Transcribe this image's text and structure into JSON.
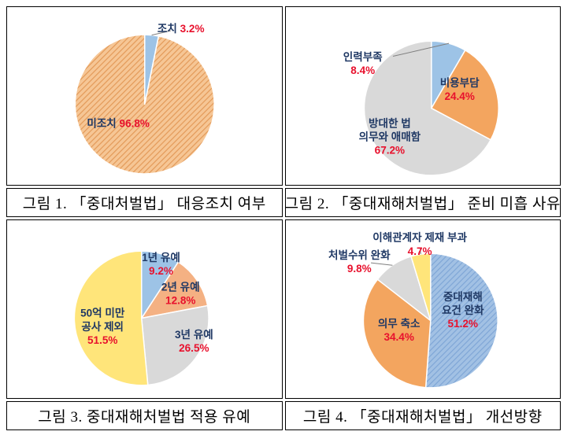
{
  "colors": {
    "label": "#1f3864",
    "pct": "#e8112d",
    "caption": "#000000",
    "border": "#000000",
    "leader": "#7f7f7f",
    "slice_stroke": "#ffffff"
  },
  "chart_data": [
    {
      "type": "pie",
      "title": "그림 1. 「중대처벌법」 대응조치 여부",
      "legend": "none",
      "start_angle_deg": 0,
      "slices": [
        {
          "label_lines": [
            "조치"
          ],
          "pct": "3.2%",
          "value": 3.2,
          "color": "#9dc3e6",
          "hatch": false,
          "inline": true,
          "label_offset": [
            0.52,
            -1.09
          ],
          "leader": true
        },
        {
          "label_lines": [
            "미조치"
          ],
          "pct": "96.8%",
          "value": 96.8,
          "color": "#f6c695",
          "hatch": true,
          "hatch_color": "#e39a59",
          "inline": true,
          "label_offset": [
            -0.38,
            0.27
          ],
          "leader": false
        }
      ]
    },
    {
      "type": "pie",
      "title": "그림 2. 「중대재해처벌법」 준비 미흡 사유",
      "legend": "none",
      "start_angle_deg": 0,
      "slices": [
        {
          "label_lines": [
            "인력부족"
          ],
          "pct": "8.4%",
          "value": 8.4,
          "color": "#9dc3e6",
          "hatch": false,
          "inline": false,
          "label_offset": [
            -1.02,
            -0.67
          ],
          "leader": true
        },
        {
          "label_lines": [
            "비용부담"
          ],
          "pct": "24.4%",
          "value": 24.4,
          "color": "#f3a55f",
          "hatch": false,
          "inline": false,
          "label_offset": [
            0.42,
            -0.28
          ],
          "leader": false
        },
        {
          "label_lines": [
            "방대한 법",
            "의무와 애매함"
          ],
          "pct": "67.2%",
          "value": 67.2,
          "color": "#d9d9d9",
          "hatch": false,
          "inline": false,
          "label_offset": [
            -0.62,
            0.42
          ],
          "leader": false
        }
      ]
    },
    {
      "type": "pie",
      "title": "그림 3. 중대재해처벌법 적용 유예",
      "legend": "none",
      "start_angle_deg": 0,
      "slices": [
        {
          "label_lines": [
            "1년 유예"
          ],
          "pct": "9.2%",
          "value": 9.2,
          "color": "#9dc3e6",
          "hatch": false,
          "inline": false,
          "label_offset": [
            0.29,
            -0.81
          ],
          "leader": false
        },
        {
          "label_lines": [
            "2년 유예"
          ],
          "pct": "12.8%",
          "value": 12.8,
          "color": "#f4b183",
          "hatch": false,
          "inline": false,
          "label_offset": [
            0.58,
            -0.37
          ],
          "leader": false
        },
        {
          "label_lines": [
            "3년 유예"
          ],
          "pct": "26.5%",
          "value": 26.5,
          "color": "#d9d9d9",
          "hatch": false,
          "inline": false,
          "label_offset": [
            0.78,
            0.34
          ],
          "leader": false
        },
        {
          "label_lines": [
            "50억 미만",
            "공사 제외"
          ],
          "pct": "51.5%",
          "value": 51.5,
          "color": "#ffe57a",
          "hatch": false,
          "inline": false,
          "label_offset": [
            -0.58,
            0.12
          ],
          "leader": false
        }
      ]
    },
    {
      "type": "pie",
      "title": "그림 4. 「중대재해처벌법」 개선방향",
      "legend": "none",
      "start_angle_deg": 0,
      "slices": [
        {
          "label_lines": [
            "중대재해",
            "요건 완화"
          ],
          "pct": "51.2%",
          "value": 51.2,
          "color": "#a2c1e4",
          "hatch": true,
          "hatch_color": "#7fa6d6",
          "inline": false,
          "label_offset": [
            0.48,
            -0.16
          ],
          "leader": false
        },
        {
          "label_lines": [
            "의무 축소"
          ],
          "pct": "34.4%",
          "value": 34.4,
          "color": "#f3a55f",
          "hatch": false,
          "inline": false,
          "label_offset": [
            -0.47,
            0.14
          ],
          "leader": false
        },
        {
          "label_lines": [
            "처벌수위 완화"
          ],
          "pct": "9.8%",
          "value": 9.8,
          "color": "#d9d9d9",
          "hatch": false,
          "inline": false,
          "label_offset": [
            -1.06,
            -0.88
          ],
          "leader": true
        },
        {
          "label_lines": [
            "이해관계자 제재 부과"
          ],
          "pct": "4.7%",
          "value": 4.7,
          "color": "#ffe57a",
          "hatch": false,
          "inline": false,
          "label_offset": [
            -0.16,
            -1.14
          ],
          "leader": true
        }
      ]
    }
  ]
}
